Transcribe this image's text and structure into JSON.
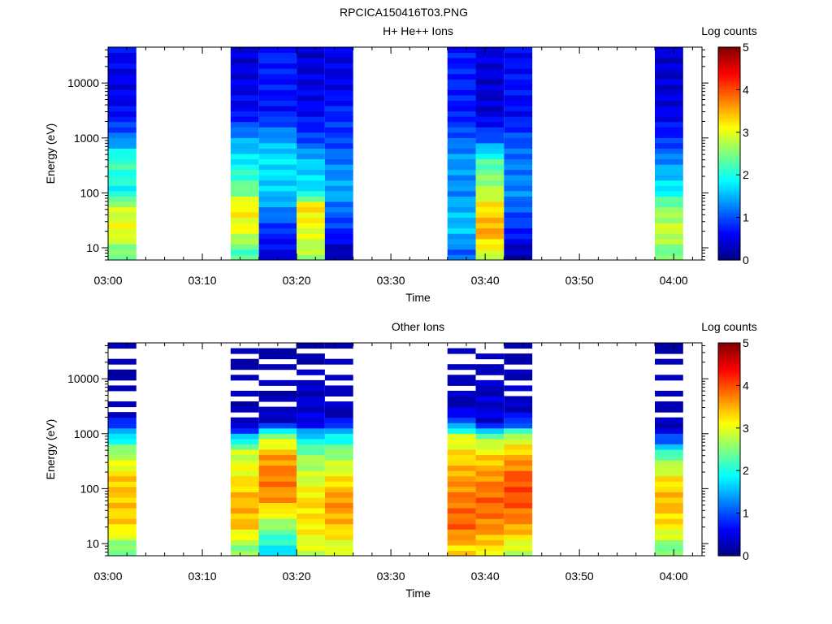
{
  "figure_title": "RPCICA150416T03.PNG",
  "chart_data": [
    {
      "type": "heatmap",
      "title": "H+ He++ Ions",
      "xlabel": "Time",
      "ylabel": "Energy (eV)",
      "x_ticks": [
        "03:00",
        "03:10",
        "03:20",
        "03:30",
        "03:40",
        "03:50",
        "04:00"
      ],
      "y_ticks": [
        "10",
        "100",
        "1000",
        "10000"
      ],
      "y_scale": "log",
      "ylim": [
        6,
        45000
      ],
      "xlim": [
        "03:00",
        "04:03"
      ],
      "colorbar": {
        "label": "Log counts",
        "range": [
          0,
          5
        ],
        "ticks": [
          "0",
          "1",
          "2",
          "3",
          "4",
          "5"
        ]
      },
      "time_blocks": [
        {
          "start": "03:00",
          "end": "03:03",
          "profile": "ionA"
        },
        {
          "start": "03:13",
          "end": "03:16",
          "profile": "ionB"
        },
        {
          "start": "03:16",
          "end": "03:20",
          "profile": "ionC"
        },
        {
          "start": "03:20",
          "end": "03:23",
          "profile": "ionD"
        },
        {
          "start": "03:23",
          "end": "03:26",
          "profile": "ionE"
        },
        {
          "start": "03:36",
          "end": "03:39",
          "profile": "ionF"
        },
        {
          "start": "03:39",
          "end": "03:42",
          "profile": "ionG"
        },
        {
          "start": "03:42",
          "end": "03:45",
          "profile": "ionH"
        },
        {
          "start": "03:58",
          "end": "04:01",
          "profile": "ionI"
        }
      ]
    },
    {
      "type": "heatmap",
      "title": "Other Ions",
      "xlabel": "Time",
      "ylabel": "Energy (eV)",
      "x_ticks": [
        "03:00",
        "03:10",
        "03:20",
        "03:30",
        "03:40",
        "03:50",
        "04:00"
      ],
      "y_ticks": [
        "10",
        "100",
        "1000",
        "10000"
      ],
      "y_scale": "log",
      "ylim": [
        6,
        45000
      ],
      "xlim": [
        "03:00",
        "04:03"
      ],
      "colorbar": {
        "label": "Log counts",
        "range": [
          0,
          5
        ],
        "ticks": [
          "0",
          "1",
          "2",
          "3",
          "4",
          "5"
        ]
      },
      "time_blocks": [
        {
          "start": "03:00",
          "end": "03:03",
          "profile": "othA"
        },
        {
          "start": "03:13",
          "end": "03:16",
          "profile": "othB"
        },
        {
          "start": "03:16",
          "end": "03:20",
          "profile": "othC"
        },
        {
          "start": "03:20",
          "end": "03:23",
          "profile": "othD"
        },
        {
          "start": "03:23",
          "end": "03:26",
          "profile": "othE"
        },
        {
          "start": "03:36",
          "end": "03:39",
          "profile": "othF"
        },
        {
          "start": "03:39",
          "end": "03:42",
          "profile": "othG"
        },
        {
          "start": "03:42",
          "end": "03:45",
          "profile": "othH"
        },
        {
          "start": "03:58",
          "end": "04:01",
          "profile": "othI"
        }
      ]
    }
  ],
  "profiles": {
    "ionA": [
      [
        8,
        2.4
      ],
      [
        20,
        3.1
      ],
      [
        60,
        2.8
      ],
      [
        100,
        1.9
      ],
      [
        400,
        2.2
      ],
      [
        1000,
        1.2
      ],
      [
        3000,
        0.6
      ],
      [
        10000,
        0.5
      ],
      [
        40000,
        0.6
      ]
    ],
    "ionB": [
      [
        8,
        2.2
      ],
      [
        20,
        3.0
      ],
      [
        60,
        3.2
      ],
      [
        100,
        2.5
      ],
      [
        400,
        1.8
      ],
      [
        1000,
        1.4
      ],
      [
        3000,
        0.6
      ],
      [
        10000,
        0.5
      ],
      [
        40000,
        0.4
      ]
    ],
    "ionC": [
      [
        8,
        0.5
      ],
      [
        20,
        0.8
      ],
      [
        60,
        1.4
      ],
      [
        100,
        1.6
      ],
      [
        400,
        1.8
      ],
      [
        1000,
        1.4
      ],
      [
        3000,
        0.7
      ],
      [
        10000,
        0.7
      ],
      [
        40000,
        0.8
      ]
    ],
    "ionD": [
      [
        8,
        2.7
      ],
      [
        20,
        3.0
      ],
      [
        60,
        3.3
      ],
      [
        100,
        1.8
      ],
      [
        400,
        1.6
      ],
      [
        1000,
        0.9
      ],
      [
        3000,
        0.6
      ],
      [
        10000,
        0.5
      ],
      [
        40000,
        0.4
      ]
    ],
    "ionE": [
      [
        8,
        0.2
      ],
      [
        20,
        0.8
      ],
      [
        60,
        1.2
      ],
      [
        100,
        1.5
      ],
      [
        400,
        1.2
      ],
      [
        1000,
        0.9
      ],
      [
        3000,
        0.8
      ],
      [
        10000,
        0.5
      ],
      [
        40000,
        0.5
      ]
    ],
    "ionF": [
      [
        8,
        1.1
      ],
      [
        20,
        1.6
      ],
      [
        60,
        1.5
      ],
      [
        100,
        1.3
      ],
      [
        400,
        1.4
      ],
      [
        1000,
        1.1
      ],
      [
        3000,
        0.7
      ],
      [
        10000,
        0.8
      ],
      [
        40000,
        0.7
      ]
    ],
    "ionG": [
      [
        8,
        2.9
      ],
      [
        20,
        3.6
      ],
      [
        60,
        3.2
      ],
      [
        100,
        2.8
      ],
      [
        400,
        2.2
      ],
      [
        1000,
        1.0
      ],
      [
        3000,
        0.4
      ],
      [
        10000,
        0.4
      ],
      [
        40000,
        0.5
      ]
    ],
    "ionH": [
      [
        8,
        0.2
      ],
      [
        20,
        0.8
      ],
      [
        60,
        1.1
      ],
      [
        100,
        1.3
      ],
      [
        400,
        1.2
      ],
      [
        1000,
        1.0
      ],
      [
        3000,
        0.6
      ],
      [
        10000,
        0.7
      ],
      [
        40000,
        0.6
      ]
    ],
    "ionI": [
      [
        8,
        2.4
      ],
      [
        20,
        2.9
      ],
      [
        60,
        2.5
      ],
      [
        100,
        1.9
      ],
      [
        400,
        1.3
      ],
      [
        1000,
        0.8
      ],
      [
        3000,
        0.5
      ],
      [
        10000,
        0.4
      ],
      [
        40000,
        0.4
      ]
    ],
    "othA": [
      [
        8,
        2.4
      ],
      [
        20,
        3.3
      ],
      [
        60,
        3.4
      ],
      [
        150,
        3.4
      ],
      [
        500,
        2.6
      ],
      [
        1200,
        1.3
      ],
      [
        2500,
        0.1
      ],
      [
        40000,
        0.1
      ]
    ],
    "othB": [
      [
        8,
        2.5
      ],
      [
        20,
        3.4
      ],
      [
        60,
        3.5
      ],
      [
        150,
        3.2
      ],
      [
        500,
        2.8
      ],
      [
        1000,
        1.3
      ],
      [
        1500,
        0.2
      ],
      [
        40000,
        0.1
      ]
    ],
    "othC": [
      [
        8,
        1.8
      ],
      [
        20,
        2.5
      ],
      [
        60,
        3.6
      ],
      [
        150,
        3.8
      ],
      [
        400,
        3.6
      ],
      [
        1000,
        2.5
      ],
      [
        1500,
        0.5
      ],
      [
        3000,
        0.2
      ],
      [
        40000,
        0.1
      ]
    ],
    "othD": [
      [
        8,
        2.9
      ],
      [
        20,
        3.2
      ],
      [
        60,
        3.3
      ],
      [
        150,
        2.9
      ],
      [
        400,
        2.6
      ],
      [
        1000,
        1.6
      ],
      [
        1500,
        0.5
      ],
      [
        40000,
        0.1
      ]
    ],
    "othE": [
      [
        8,
        2.9
      ],
      [
        20,
        3.4
      ],
      [
        60,
        3.7
      ],
      [
        150,
        3.2
      ],
      [
        500,
        2.5
      ],
      [
        1000,
        1.7
      ],
      [
        2000,
        0.3
      ],
      [
        40000,
        0.1
      ]
    ],
    "othF": [
      [
        8,
        3.3
      ],
      [
        20,
        3.9
      ],
      [
        60,
        3.8
      ],
      [
        150,
        3.6
      ],
      [
        400,
        3.3
      ],
      [
        900,
        2.9
      ],
      [
        1500,
        1.2
      ],
      [
        3000,
        0.3
      ],
      [
        40000,
        0.1
      ]
    ],
    "othG": [
      [
        8,
        3.2
      ],
      [
        20,
        3.7
      ],
      [
        60,
        3.9
      ],
      [
        150,
        3.7
      ],
      [
        400,
        3.3
      ],
      [
        900,
        2.5
      ],
      [
        1500,
        0.5
      ],
      [
        40000,
        0.1
      ]
    ],
    "othH": [
      [
        8,
        2.8
      ],
      [
        20,
        3.6
      ],
      [
        60,
        4.0
      ],
      [
        150,
        4.0
      ],
      [
        400,
        3.5
      ],
      [
        900,
        2.8
      ],
      [
        1500,
        1.0
      ],
      [
        3000,
        0.3
      ],
      [
        40000,
        0.1
      ]
    ],
    "othI": [
      [
        8,
        2.4
      ],
      [
        20,
        3.2
      ],
      [
        60,
        3.5
      ],
      [
        150,
        3.2
      ],
      [
        400,
        2.4
      ],
      [
        700,
        1.2
      ],
      [
        1500,
        0.2
      ],
      [
        40000,
        0.1
      ]
    ]
  },
  "colors": {
    "background": "#ffffff",
    "axis": "#000000",
    "colormap": [
      "#00007f",
      "#0000ff",
      "#007fff",
      "#00ffff",
      "#7fff7f",
      "#ffff00",
      "#ff7f00",
      "#ff0000",
      "#7f0000"
    ]
  }
}
